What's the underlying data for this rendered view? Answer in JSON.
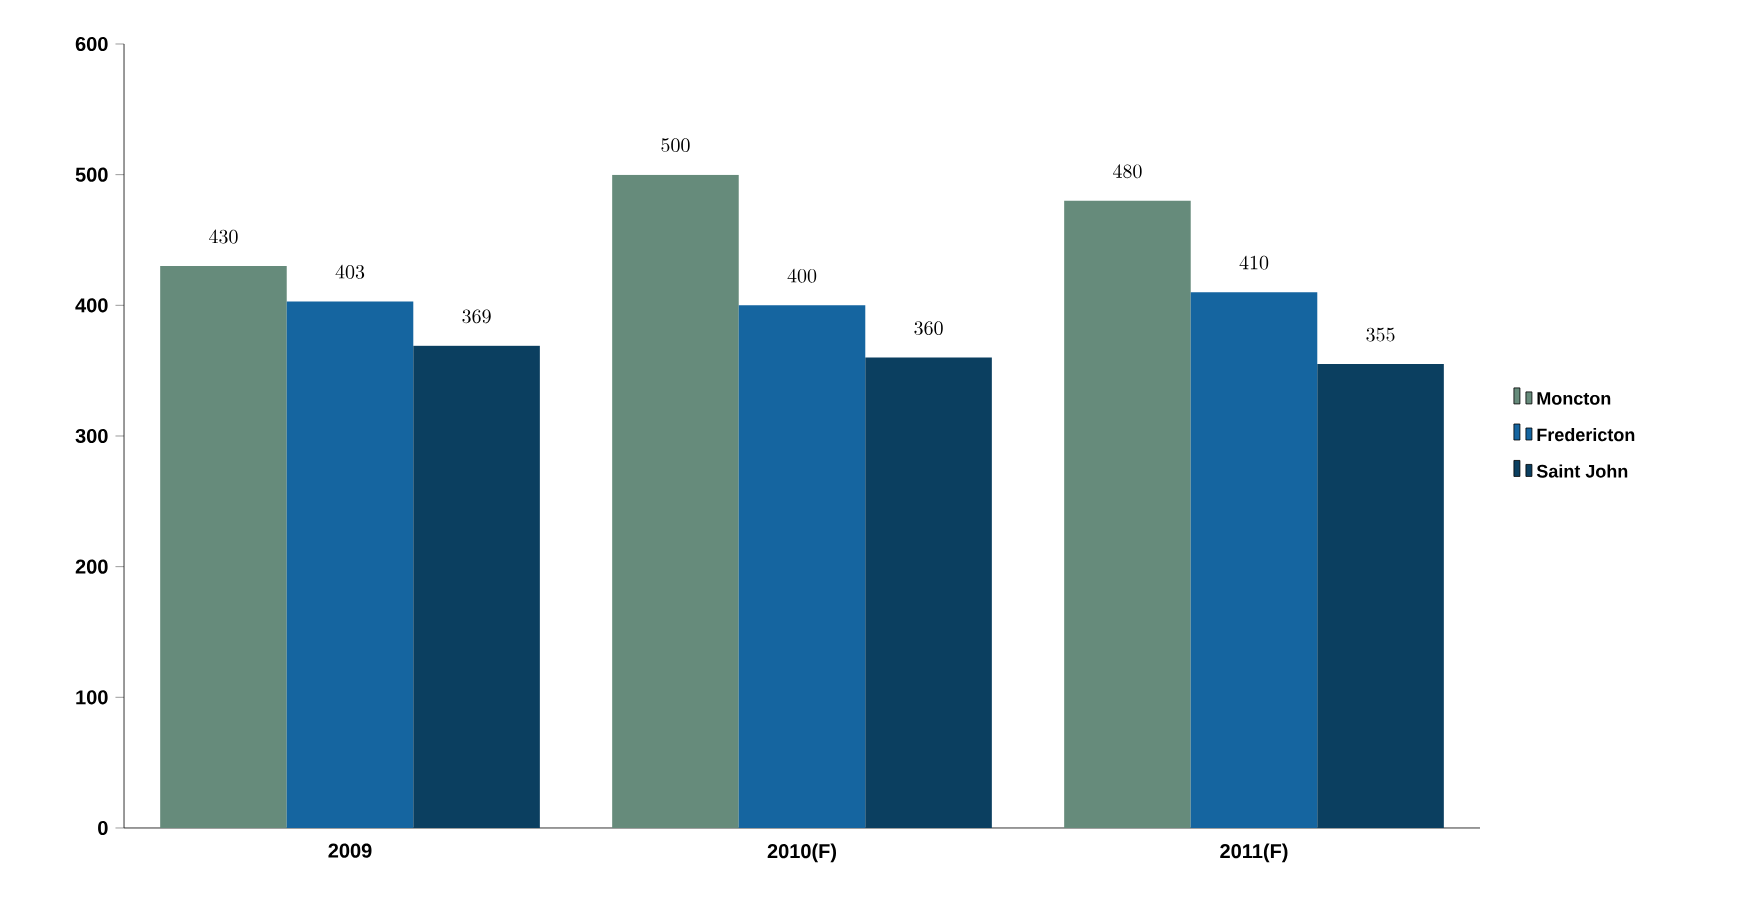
{
  "chart_data": {
    "type": "bar",
    "categories": [
      "2009",
      "2010(F)",
      "2011(F)"
    ],
    "series": [
      {
        "name": "Moncton",
        "color": "#668b7b",
        "values": [
          430,
          500,
          480
        ]
      },
      {
        "name": "Fredericton",
        "color": "#1565a0",
        "values": [
          403,
          400,
          410
        ]
      },
      {
        "name": "Saint John",
        "color": "#0b3f60",
        "values": [
          369,
          360,
          355
        ]
      }
    ],
    "ylim": [
      0,
      600
    ],
    "yticks": [
      0,
      100,
      200,
      300,
      400,
      500,
      600
    ],
    "data_labels": true,
    "legend": "right",
    "grid": false
  }
}
